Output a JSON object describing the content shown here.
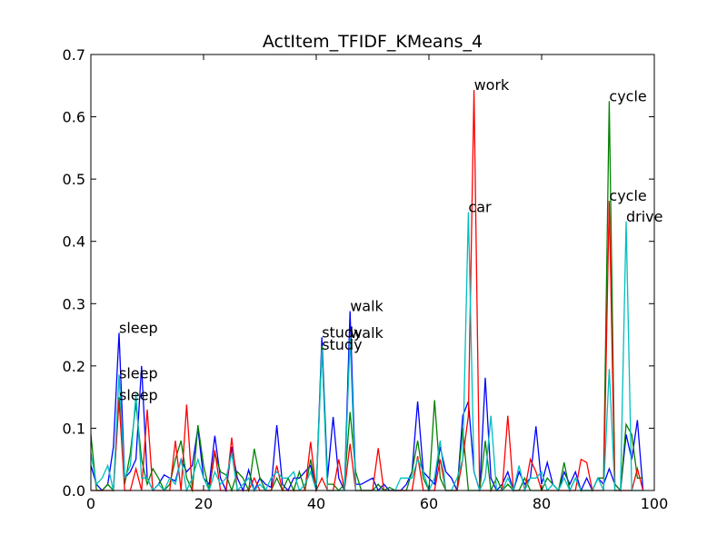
{
  "chart_data": {
    "type": "line",
    "title": "ActItem_TFIDF_KMeans_4",
    "xlabel": "",
    "ylabel": "",
    "xlim": [
      0,
      100
    ],
    "ylim": [
      0,
      0.7
    ],
    "xticks": [
      0,
      20,
      40,
      60,
      80,
      100
    ],
    "yticks": [
      0.0,
      0.1,
      0.2,
      0.3,
      0.4,
      0.5,
      0.6,
      0.7
    ],
    "ytick_labels": [
      "0.0",
      "0.1",
      "0.2",
      "0.3",
      "0.4",
      "0.5",
      "0.6",
      "0.7"
    ],
    "grid": false,
    "legend": "none",
    "series": [
      {
        "color": "#0000ff",
        "x": [
          0,
          1,
          2,
          3,
          4,
          5,
          6,
          7,
          8,
          9,
          10,
          11,
          12,
          13,
          14,
          15,
          16,
          17,
          18,
          19,
          20,
          21,
          22,
          23,
          24,
          25,
          26,
          27,
          28,
          29,
          30,
          31,
          32,
          33,
          34,
          35,
          36,
          37,
          38,
          39,
          40,
          41,
          42,
          43,
          44,
          45,
          46,
          47,
          48,
          49,
          50,
          51,
          52,
          53,
          54,
          55,
          56,
          57,
          58,
          59,
          60,
          61,
          62,
          63,
          64,
          65,
          66,
          67,
          68,
          69,
          70,
          71,
          72,
          73,
          74,
          75,
          76,
          77,
          78,
          79,
          80,
          81,
          82,
          83,
          84,
          85,
          86,
          87,
          88,
          89,
          90,
          91,
          92,
          93,
          94,
          95,
          96,
          97,
          98
        ],
        "y": [
          0.04,
          0.01,
          0.0,
          0.01,
          0.07,
          0.253,
          0.02,
          0.03,
          0.05,
          0.2,
          0.02,
          0.0,
          0.01,
          0.025,
          0.02,
          0.015,
          0.05,
          0.03,
          0.04,
          0.1,
          0.02,
          0.01,
          0.088,
          0.02,
          0.0,
          0.07,
          0.02,
          0.0,
          0.033,
          0.0,
          0.02,
          0.01,
          0.005,
          0.105,
          0.01,
          0.0,
          0.02,
          0.02,
          0.03,
          0.04,
          0.0,
          0.246,
          0.02,
          0.118,
          0.02,
          0.0,
          0.288,
          0.01,
          0.01,
          0.015,
          0.02,
          0.0,
          0.01,
          0.0,
          0.0,
          0.0,
          0.01,
          0.03,
          0.143,
          0.03,
          0.02,
          0.01,
          0.07,
          0.03,
          0.02,
          0.0,
          0.12,
          0.143,
          0.03,
          0.0,
          0.181,
          0.02,
          0.0,
          0.01,
          0.03,
          0.0,
          0.03,
          0.01,
          0.02,
          0.103,
          0.01,
          0.045,
          0.01,
          0.0,
          0.03,
          0.01,
          0.03,
          0.0,
          0.02,
          0.0,
          0.02,
          0.01,
          0.035,
          0.01,
          0.0,
          0.09,
          0.05,
          0.113,
          0.0
        ]
      },
      {
        "color": "#008000",
        "x": [
          0,
          1,
          2,
          3,
          4,
          5,
          6,
          7,
          8,
          9,
          10,
          11,
          12,
          13,
          14,
          15,
          16,
          17,
          18,
          19,
          20,
          21,
          22,
          23,
          24,
          25,
          26,
          27,
          28,
          29,
          30,
          31,
          32,
          33,
          34,
          35,
          36,
          37,
          38,
          39,
          40,
          41,
          42,
          43,
          44,
          45,
          46,
          47,
          48,
          49,
          50,
          51,
          52,
          53,
          54,
          55,
          56,
          57,
          58,
          59,
          60,
          61,
          62,
          63,
          64,
          65,
          66,
          67,
          68,
          69,
          70,
          71,
          72,
          73,
          74,
          75,
          76,
          77,
          78,
          79,
          80,
          81,
          82,
          83,
          84,
          85,
          86,
          87,
          88,
          89,
          90,
          91,
          92,
          93,
          94,
          95,
          96,
          97,
          98
        ],
        "y": [
          0.09,
          0.0,
          0.0,
          0.01,
          0.0,
          0.15,
          0.01,
          0.06,
          0.14,
          0.05,
          0.01,
          0.035,
          0.02,
          0.0,
          0.01,
          0.05,
          0.08,
          0.02,
          0.0,
          0.105,
          0.04,
          0.0,
          0.06,
          0.03,
          0.025,
          0.0,
          0.03,
          0.02,
          0.0,
          0.067,
          0.02,
          0.0,
          0.0,
          0.02,
          0.0,
          0.02,
          0.0,
          0.03,
          0.0,
          0.05,
          0.0,
          0.232,
          0.01,
          0.01,
          0.0,
          0.01,
          0.126,
          0.03,
          0.0,
          0.0,
          0.0,
          0.01,
          0.0,
          0.005,
          0.0,
          0.0,
          0.0,
          0.03,
          0.08,
          0.02,
          0.0,
          0.145,
          0.02,
          0.0,
          0.0,
          0.0,
          0.1,
          0.0,
          0.0,
          0.0,
          0.08,
          0.0,
          0.02,
          0.0,
          0.01,
          0.0,
          0.0,
          0.02,
          0.0,
          0.0,
          0.0,
          0.02,
          0.01,
          0.0,
          0.045,
          0.0,
          0.02,
          0.0,
          0.0,
          0.0,
          0.02,
          0.02,
          0.625,
          0.01,
          0.0,
          0.106,
          0.09,
          0.02,
          0.02
        ]
      },
      {
        "color": "#ff0000",
        "x": [
          0,
          1,
          2,
          3,
          4,
          5,
          6,
          7,
          8,
          9,
          10,
          11,
          12,
          13,
          14,
          15,
          16,
          17,
          18,
          19,
          20,
          21,
          22,
          23,
          24,
          25,
          26,
          27,
          28,
          29,
          30,
          31,
          32,
          33,
          34,
          35,
          36,
          37,
          38,
          39,
          40,
          41,
          42,
          43,
          44,
          45,
          46,
          47,
          48,
          49,
          50,
          51,
          52,
          53,
          54,
          55,
          56,
          57,
          58,
          59,
          60,
          61,
          62,
          63,
          64,
          65,
          66,
          67,
          68,
          69,
          70,
          71,
          72,
          73,
          74,
          75,
          76,
          77,
          78,
          79,
          80,
          81,
          82,
          83,
          84,
          85,
          86,
          87,
          88,
          89,
          90,
          91,
          92,
          93,
          94,
          95,
          96,
          97,
          98
        ],
        "y": [
          0.0,
          0.0,
          0.0,
          0.0,
          0.0,
          0.145,
          0.0,
          0.0,
          0.035,
          0.0,
          0.13,
          0.0,
          0.0,
          0.0,
          0.0,
          0.08,
          0.0,
          0.138,
          0.0,
          0.0,
          0.0,
          0.0,
          0.065,
          0.0,
          0.0,
          0.085,
          0.0,
          0.0,
          0.0,
          0.02,
          0.0,
          0.0,
          0.0,
          0.04,
          0.0,
          0.0,
          0.0,
          0.0,
          0.0,
          0.078,
          0.0,
          0.02,
          0.0,
          0.0,
          0.05,
          0.0,
          0.075,
          0.0,
          0.0,
          0.0,
          0.0,
          0.068,
          0.0,
          0.0,
          0.0,
          0.0,
          0.0,
          0.0,
          0.055,
          0.0,
          0.0,
          0.0,
          0.05,
          0.0,
          0.0,
          0.0,
          0.05,
          0.12,
          0.643,
          0.0,
          0.0,
          0.0,
          0.0,
          0.0,
          0.12,
          0.0,
          0.0,
          0.0,
          0.05,
          0.03,
          0.0,
          0.0,
          0.0,
          0.0,
          0.0,
          0.0,
          0.0,
          0.05,
          0.045,
          0.0,
          0.0,
          0.0,
          0.465,
          0.0,
          0.0,
          0.0,
          0.0,
          0.035,
          0.0
        ]
      },
      {
        "color": "#00bfbf",
        "x": [
          0,
          1,
          2,
          3,
          4,
          5,
          6,
          7,
          8,
          9,
          10,
          11,
          12,
          13,
          14,
          15,
          16,
          17,
          18,
          19,
          20,
          21,
          22,
          23,
          24,
          25,
          26,
          27,
          28,
          29,
          30,
          31,
          32,
          33,
          34,
          35,
          36,
          37,
          38,
          39,
          40,
          41,
          42,
          43,
          44,
          45,
          46,
          47,
          48,
          49,
          50,
          51,
          52,
          53,
          54,
          55,
          56,
          57,
          58,
          59,
          60,
          61,
          62,
          63,
          64,
          65,
          66,
          67,
          68,
          69,
          70,
          71,
          72,
          73,
          74,
          75,
          76,
          77,
          78,
          79,
          80,
          81,
          82,
          83,
          84,
          85,
          86,
          87,
          88,
          89,
          90,
          91,
          92,
          93,
          94,
          95,
          96,
          97,
          98
        ],
        "y": [
          0.06,
          0.01,
          0.02,
          0.04,
          0.0,
          0.186,
          0.02,
          0.04,
          0.155,
          0.02,
          0.02,
          0.0,
          0.01,
          0.0,
          0.02,
          0.01,
          0.05,
          0.0,
          0.02,
          0.05,
          0.02,
          0.0,
          0.03,
          0.01,
          0.02,
          0.06,
          0.0,
          0.01,
          0.02,
          0.0,
          0.01,
          0.0,
          0.02,
          0.03,
          0.02,
          0.02,
          0.03,
          0.0,
          0.01,
          0.03,
          0.0,
          0.226,
          0.0,
          0.0,
          0.0,
          0.0,
          0.245,
          0.0,
          0.0,
          0.0,
          0.0,
          0.0,
          0.0,
          0.0,
          0.0,
          0.02,
          0.02,
          0.02,
          0.05,
          0.03,
          0.0,
          0.02,
          0.08,
          0.0,
          0.0,
          0.02,
          0.05,
          0.447,
          0.03,
          0.0,
          0.02,
          0.12,
          0.0,
          0.0,
          0.02,
          0.0,
          0.04,
          0.0,
          0.02,
          0.02,
          0.03,
          0.0,
          0.01,
          0.0,
          0.02,
          0.0,
          0.02,
          0.0,
          0.0,
          0.0,
          0.02,
          0.0,
          0.195,
          0.0,
          0.0,
          0.432,
          0.0,
          0.0,
          0.0
        ]
      }
    ],
    "annotations": [
      {
        "text": "sleep",
        "x": 5,
        "y": 0.253
      },
      {
        "text": "sleep",
        "x": 5,
        "y": 0.18
      },
      {
        "text": "sleep",
        "x": 5,
        "y": 0.145
      },
      {
        "text": "study",
        "x": 41,
        "y": 0.246
      },
      {
        "text": "study",
        "x": 41,
        "y": 0.226
      },
      {
        "text": "walk",
        "x": 46,
        "y": 0.288
      },
      {
        "text": "walk",
        "x": 46,
        "y": 0.245
      },
      {
        "text": "work",
        "x": 68,
        "y": 0.643
      },
      {
        "text": "car",
        "x": 67,
        "y": 0.447
      },
      {
        "text": "cycle",
        "x": 92,
        "y": 0.625
      },
      {
        "text": "cycle",
        "x": 92,
        "y": 0.465
      },
      {
        "text": "drive",
        "x": 95,
        "y": 0.432
      }
    ]
  }
}
